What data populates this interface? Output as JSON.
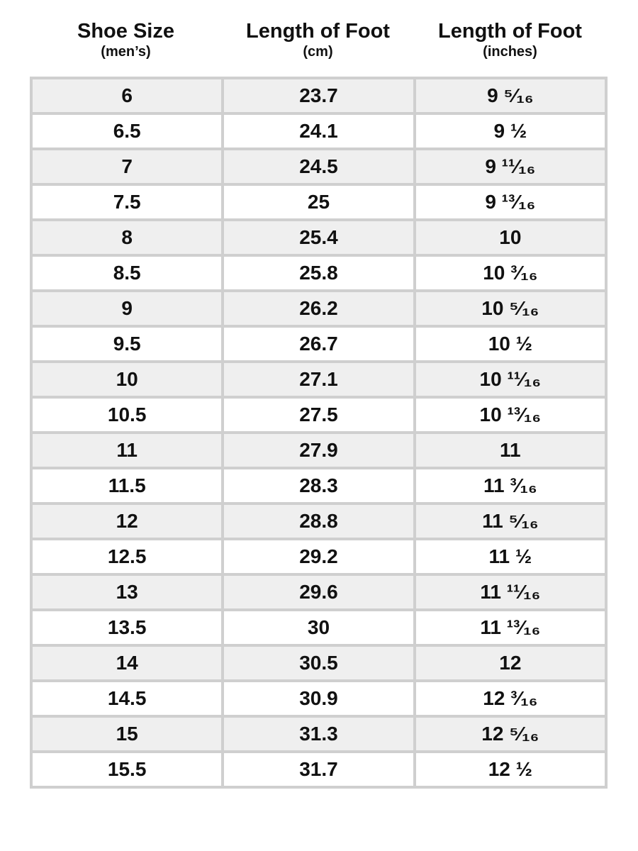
{
  "headers": [
    {
      "title": "Shoe Size",
      "sub": "(men’s)"
    },
    {
      "title": "Length of Foot",
      "sub": "(cm)"
    },
    {
      "title": "Length of Foot",
      "sub": "(inches)"
    }
  ],
  "rows": [
    [
      "6",
      "23.7",
      "9 ⁵⁄₁₆"
    ],
    [
      "6.5",
      "24.1",
      "9 ½"
    ],
    [
      "7",
      "24.5",
      "9 ¹¹⁄₁₆"
    ],
    [
      "7.5",
      "25",
      "9 ¹³⁄₁₆"
    ],
    [
      "8",
      "25.4",
      "10"
    ],
    [
      "8.5",
      "25.8",
      "10 ³⁄₁₆"
    ],
    [
      "9",
      "26.2",
      "10 ⁵⁄₁₆"
    ],
    [
      "9.5",
      "26.7",
      "10 ½"
    ],
    [
      "10",
      "27.1",
      "10 ¹¹⁄₁₆"
    ],
    [
      "10.5",
      "27.5",
      "10 ¹³⁄₁₆"
    ],
    [
      "11",
      "27.9",
      "11"
    ],
    [
      "11.5",
      "28.3",
      "11 ³⁄₁₆"
    ],
    [
      "12",
      "28.8",
      "11 ⁵⁄₁₆"
    ],
    [
      "12.5",
      "29.2",
      "11 ½"
    ],
    [
      "13",
      "29.6",
      "11 ¹¹⁄₁₆"
    ],
    [
      "13.5",
      "30",
      "11 ¹³⁄₁₆"
    ],
    [
      "14",
      "30.5",
      "12"
    ],
    [
      "14.5",
      "30.9",
      "12 ³⁄₁₆"
    ],
    [
      "15",
      "31.3",
      "12 ⁵⁄₁₆"
    ],
    [
      "15.5",
      "31.7",
      "12 ½"
    ]
  ],
  "colors": {
    "border": "#cfcfcf",
    "stripe": "#efefef"
  }
}
